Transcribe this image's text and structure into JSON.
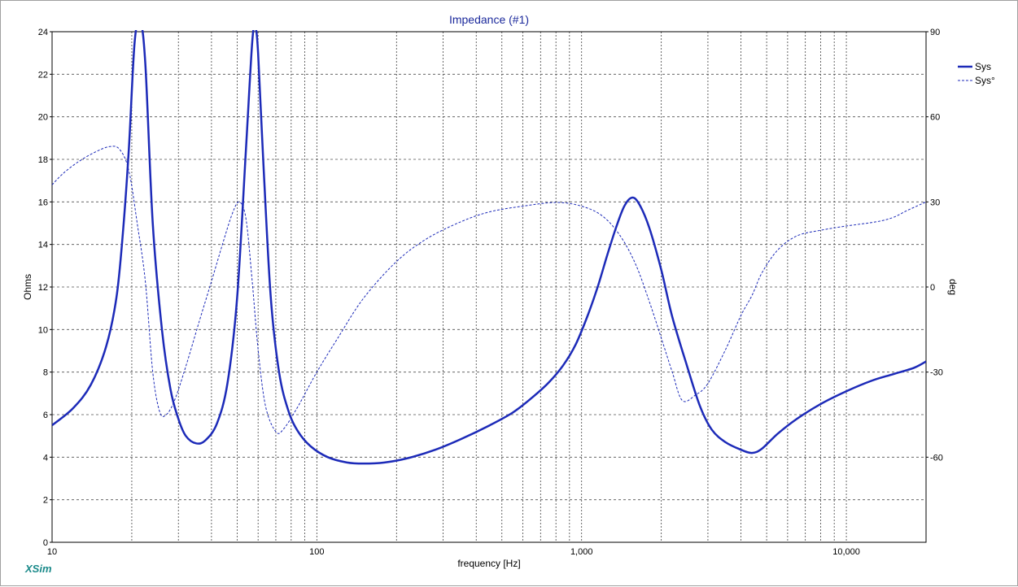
{
  "chart_data": {
    "type": "line",
    "title": "Impedance (#1)",
    "xlabel": "frequency [Hz]",
    "ylabel": "Ohms",
    "y2label": "deg",
    "xscale": "log",
    "xlim": [
      10,
      20000
    ],
    "ylim": [
      0,
      24
    ],
    "y2lim": [
      -90,
      90
    ],
    "x_tick_labels": [
      {
        "value": 10,
        "label": "10"
      },
      {
        "value": 100,
        "label": "100"
      },
      {
        "value": 1000,
        "label": "1,000"
      },
      {
        "value": 10000,
        "label": "10,000"
      }
    ],
    "y_ticks": [
      0,
      2,
      4,
      6,
      8,
      10,
      12,
      14,
      16,
      18,
      20,
      22,
      24
    ],
    "y2_ticks": [
      90,
      60,
      30,
      0,
      -30,
      -60
    ],
    "grid": true,
    "legend_position": "top-right",
    "series": [
      {
        "name": "Sys",
        "axis": "left",
        "style": "solid",
        "color": "#1c2ab8",
        "points": [
          [
            10,
            5.5
          ],
          [
            12,
            6.3
          ],
          [
            14,
            7.4
          ],
          [
            16,
            9.2
          ],
          [
            17.5,
            11.5
          ],
          [
            18.5,
            14.5
          ],
          [
            19.5,
            18.5
          ],
          [
            20.5,
            23.5
          ],
          [
            21.5,
            24.5
          ],
          [
            22.5,
            22.5
          ],
          [
            24,
            15
          ],
          [
            26,
            10
          ],
          [
            28,
            7.2
          ],
          [
            30,
            5.8
          ],
          [
            32,
            5.0
          ],
          [
            35,
            4.65
          ],
          [
            38,
            4.8
          ],
          [
            42,
            5.6
          ],
          [
            46,
            7.5
          ],
          [
            50,
            11.5
          ],
          [
            54,
            18.5
          ],
          [
            57,
            23.5
          ],
          [
            58.5,
            24.2
          ],
          [
            60,
            23
          ],
          [
            63,
            17.5
          ],
          [
            67,
            11.5
          ],
          [
            72,
            8
          ],
          [
            78,
            6.2
          ],
          [
            85,
            5.2
          ],
          [
            95,
            4.5
          ],
          [
            110,
            4.0
          ],
          [
            130,
            3.75
          ],
          [
            150,
            3.7
          ],
          [
            180,
            3.75
          ],
          [
            220,
            3.95
          ],
          [
            280,
            4.35
          ],
          [
            350,
            4.85
          ],
          [
            450,
            5.5
          ],
          [
            550,
            6.1
          ],
          [
            650,
            6.8
          ],
          [
            750,
            7.5
          ],
          [
            850,
            8.3
          ],
          [
            950,
            9.3
          ],
          [
            1050,
            10.6
          ],
          [
            1150,
            12.0
          ],
          [
            1250,
            13.5
          ],
          [
            1350,
            14.8
          ],
          [
            1450,
            15.8
          ],
          [
            1550,
            16.2
          ],
          [
            1650,
            15.9
          ],
          [
            1800,
            14.8
          ],
          [
            2000,
            12.8
          ],
          [
            2200,
            10.6
          ],
          [
            2500,
            8.3
          ],
          [
            2800,
            6.4
          ],
          [
            3100,
            5.3
          ],
          [
            3500,
            4.7
          ],
          [
            4000,
            4.35
          ],
          [
            4400,
            4.2
          ],
          [
            4800,
            4.4
          ],
          [
            5500,
            5.1
          ],
          [
            6500,
            5.8
          ],
          [
            8000,
            6.5
          ],
          [
            10000,
            7.1
          ],
          [
            12500,
            7.6
          ],
          [
            15000,
            7.9
          ],
          [
            18000,
            8.2
          ],
          [
            20000,
            8.5
          ]
        ]
      },
      {
        "name": "Sys°",
        "axis": "right",
        "style": "dashed",
        "color": "#1c2ab8",
        "points": [
          [
            10,
            36
          ],
          [
            11,
            40
          ],
          [
            12.5,
            44
          ],
          [
            14.5,
            47.5
          ],
          [
            16.5,
            49.5
          ],
          [
            18,
            48.5
          ],
          [
            19.5,
            41
          ],
          [
            21,
            22
          ],
          [
            22.5,
            2
          ],
          [
            24,
            -30
          ],
          [
            25.5,
            -44
          ],
          [
            27,
            -45
          ],
          [
            29,
            -40
          ],
          [
            32,
            -28
          ],
          [
            36,
            -12
          ],
          [
            40,
            2
          ],
          [
            44,
            15
          ],
          [
            48,
            26
          ],
          [
            51,
            30
          ],
          [
            54,
            24
          ],
          [
            57,
            2
          ],
          [
            60,
            -22
          ],
          [
            64,
            -42
          ],
          [
            70,
            -51
          ],
          [
            75,
            -50
          ],
          [
            85,
            -42
          ],
          [
            100,
            -30
          ],
          [
            120,
            -18
          ],
          [
            150,
            -4
          ],
          [
            200,
            9
          ],
          [
            260,
            17
          ],
          [
            350,
            23
          ],
          [
            450,
            26.5
          ],
          [
            600,
            28.5
          ],
          [
            800,
            29.8
          ],
          [
            1000,
            28.5
          ],
          [
            1200,
            25
          ],
          [
            1400,
            18
          ],
          [
            1600,
            8
          ],
          [
            1800,
            -5
          ],
          [
            2000,
            -18
          ],
          [
            2200,
            -30
          ],
          [
            2400,
            -40
          ],
          [
            2700,
            -38
          ],
          [
            3000,
            -34
          ],
          [
            3500,
            -22
          ],
          [
            4000,
            -10
          ],
          [
            4400,
            -3
          ],
          [
            4800,
            5
          ],
          [
            5500,
            13
          ],
          [
            6500,
            18
          ],
          [
            8000,
            20
          ],
          [
            10000,
            21.5
          ],
          [
            13000,
            23
          ],
          [
            15000,
            24.5
          ],
          [
            17000,
            27
          ],
          [
            20000,
            30
          ]
        ]
      }
    ]
  },
  "branding": {
    "logo_text": "XSim"
  }
}
